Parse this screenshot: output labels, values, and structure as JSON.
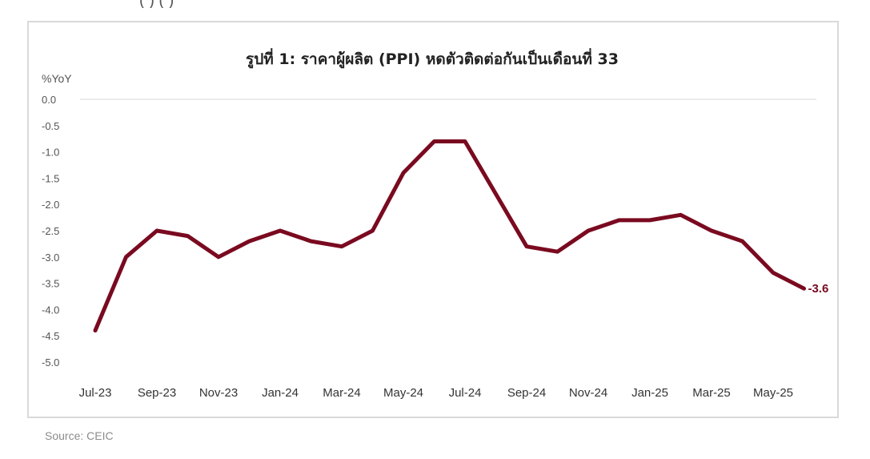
{
  "chart_data": {
    "type": "line",
    "title": "รูปที่ 1: ราคาผู้ผลิต (PPI) หดตัวติดต่อกันเป็นเดือนที่ 33",
    "ylabel": "%YoY",
    "xlabel": "",
    "ylim": [
      -5.0,
      0.0
    ],
    "yticks": [
      "0.0",
      "-0.5",
      "-1.0",
      "-1.5",
      "-2.0",
      "-2.5",
      "-3.0",
      "-3.5",
      "-4.0",
      "-4.5",
      "-5.0"
    ],
    "x": [
      "Jul-23",
      "Aug-23",
      "Sep-23",
      "Oct-23",
      "Nov-23",
      "Dec-23",
      "Jan-24",
      "Feb-24",
      "Mar-24",
      "Apr-24",
      "May-24",
      "Jun-24",
      "Jul-24",
      "Aug-24",
      "Sep-24",
      "Oct-24",
      "Nov-24",
      "Dec-24",
      "Jan-25",
      "Feb-25",
      "Mar-25",
      "Apr-25",
      "May-25",
      "Jun-25"
    ],
    "xtick_labels": [
      "Jul-23",
      "Sep-23",
      "Nov-23",
      "Jan-24",
      "Mar-24",
      "May-24",
      "Jul-24",
      "Sep-24",
      "Nov-24",
      "Jan-25",
      "Mar-25",
      "May-25"
    ],
    "series": [
      {
        "values": [
          -4.4,
          -3.0,
          -2.5,
          -2.6,
          -3.0,
          -2.7,
          -2.5,
          -2.7,
          -2.8,
          -2.5,
          -1.4,
          -0.8,
          -0.8,
          -1.8,
          -2.8,
          -2.9,
          -2.5,
          -2.3,
          -2.3,
          -2.2,
          -2.5,
          -2.7,
          -3.3,
          -3.6
        ]
      }
    ],
    "end_label": "-3.6",
    "grid": false,
    "line_color": "#7a0a20"
  },
  "top_clip_text": "(                    )                              (                    )",
  "source": "Source: CEIC"
}
